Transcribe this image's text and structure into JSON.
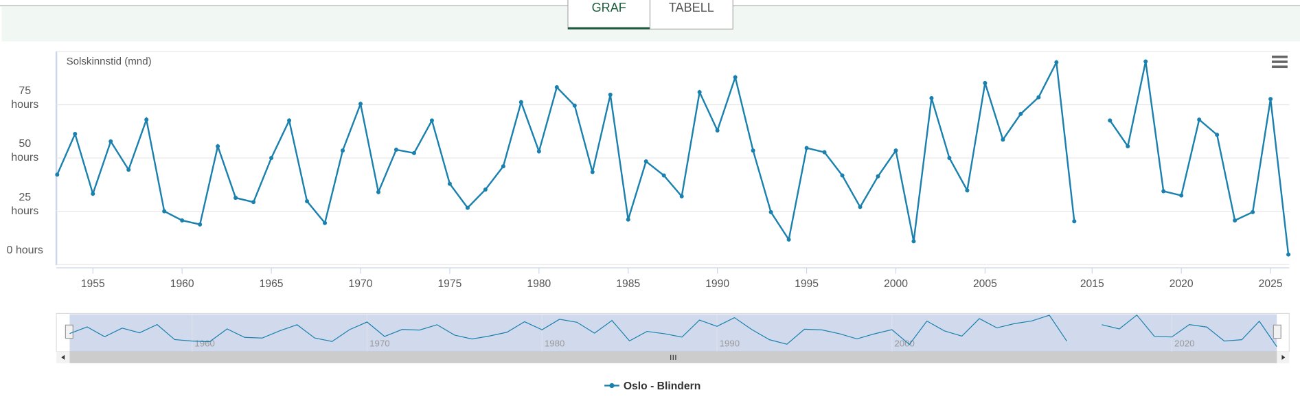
{
  "tabs": [
    "GRAF",
    "TABELL"
  ],
  "chart_data": {
    "type": "line",
    "title": "Solskinnstid (mnd)",
    "x": [
      1953,
      1954,
      1955,
      1956,
      1957,
      1958,
      1959,
      1960,
      1961,
      1962,
      1963,
      1964,
      1965,
      1966,
      1967,
      1968,
      1969,
      1970,
      1971,
      1972,
      1973,
      1974,
      1975,
      1976,
      1977,
      1978,
      1979,
      1980,
      1981,
      1982,
      1983,
      1984,
      1985,
      1986,
      1987,
      1988,
      1989,
      1990,
      1991,
      1992,
      1993,
      1994,
      1995,
      1996,
      1997,
      1998,
      1999,
      2000,
      2001,
      2002,
      2003,
      2004,
      2005,
      2006,
      2007,
      2008,
      2009,
      2010,
      2015,
      2016,
      2017,
      2018,
      2019,
      2020,
      2021,
      2022,
      2023,
      2024,
      2025,
      2026
    ],
    "series": [
      {
        "name": "Oslo - Blindern",
        "color": "#1a80ad",
        "values": [
          42.2,
          61.3,
          33.2,
          57.8,
          44.5,
          68,
          25,
          20.7,
          18.8,
          55.5,
          31.3,
          29.3,
          50,
          67.6,
          29.7,
          19.5,
          53.5,
          75.4,
          34,
          53.9,
          52.3,
          67.6,
          37.9,
          26.6,
          35.2,
          46.1,
          76.2,
          53.1,
          83.2,
          74.6,
          43.4,
          79.7,
          21.1,
          48.4,
          41.8,
          32,
          80.9,
          62.9,
          87.9,
          53.5,
          24.6,
          11.7,
          54.7,
          52.7,
          41.8,
          27,
          41.4,
          53.5,
          10.9,
          78.1,
          50,
          34.8,
          85.2,
          58.6,
          70.7,
          78.5,
          94.9,
          20.3,
          null,
          67.6,
          55.5,
          95.3,
          34.4,
          32.4,
          68,
          60.9,
          20.7,
          24.6,
          77.7,
          4.7
        ]
      }
    ],
    "ylim": [
      0,
      100
    ],
    "yticks": [
      {
        "value": 0,
        "label": "0 hours"
      },
      {
        "value": 25,
        "label": "25 hours"
      },
      {
        "value": 50,
        "label": "50 hours"
      },
      {
        "value": 75,
        "label": "75 hours"
      }
    ],
    "xticks": [
      1955,
      1960,
      1965,
      1970,
      1975,
      1980,
      1985,
      1990,
      1995,
      2000,
      2005,
      2015,
      2020,
      2025
    ],
    "navigator_xticks": [
      1960,
      1970,
      1980,
      1990,
      2000,
      2020
    ],
    "grid": true
  }
}
